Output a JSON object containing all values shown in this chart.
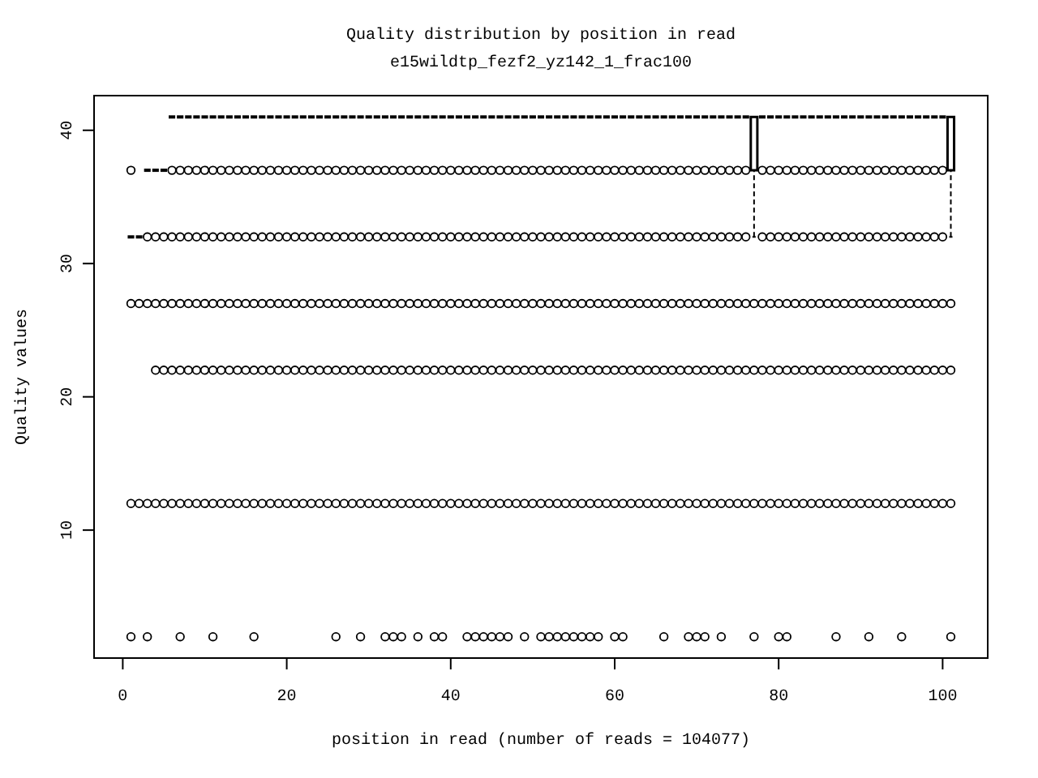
{
  "chart_data": {
    "type": "box",
    "title": "Quality distribution by position in read",
    "subtitle": "e15wildtp_fezf2_yz142_1_frac100",
    "xlabel": "position in read (number of reads = 104077)",
    "ylabel": "Quality values",
    "xlim": [
      -3.5,
      105.5
    ],
    "xticks": [
      0,
      20,
      40,
      60,
      80,
      100
    ],
    "ylim": [
      0.4,
      42.6
    ],
    "yticks": [
      10,
      20,
      30,
      40
    ],
    "series": [
      {
        "color": "#000000",
        "x": [
          1,
          2,
          3,
          4,
          5,
          6,
          7,
          8,
          9,
          10,
          11,
          12,
          13,
          14,
          15,
          16,
          17,
          18,
          19,
          20,
          21,
          22,
          23,
          24,
          25,
          26,
          27,
          28,
          29,
          30,
          31,
          32,
          33,
          34,
          35,
          36,
          37,
          38,
          39,
          40,
          41,
          42,
          43,
          44,
          45,
          46,
          47,
          48,
          49,
          50,
          51,
          52,
          53,
          54,
          55,
          56,
          57,
          58,
          59,
          60,
          61,
          62,
          63,
          64,
          65,
          66,
          67,
          68,
          69,
          70,
          71,
          72,
          73,
          74,
          75,
          76,
          77,
          78,
          79,
          80,
          81,
          82,
          83,
          84,
          85,
          86,
          87,
          88,
          89,
          90,
          91,
          92,
          93,
          94,
          95,
          96,
          97,
          98,
          99,
          100,
          101
        ],
        "boxes": [
          {
            "low": 32,
            "q1": 32,
            "median": 32,
            "q3": 32,
            "high": 32,
            "outliers": [
              37,
              27,
              12,
              2
            ]
          },
          {
            "low": 32,
            "q1": 32,
            "median": 32,
            "q3": 32,
            "high": 32,
            "outliers": [
              27,
              12
            ]
          },
          {
            "low": 37,
            "q1": 37,
            "median": 37,
            "q3": 37,
            "high": 37,
            "outliers": [
              32,
              27,
              12,
              2
            ]
          },
          {
            "low": 37,
            "q1": 37,
            "median": 37,
            "q3": 37,
            "high": 37,
            "outliers": [
              32,
              27,
              22,
              12
            ]
          },
          {
            "low": 37,
            "q1": 37,
            "median": 37,
            "q3": 37,
            "high": 37,
            "outliers": [
              32,
              27,
              22,
              12
            ]
          },
          {
            "low": 41,
            "q1": 41,
            "median": 41,
            "q3": 41,
            "high": 41,
            "outliers": [
              37,
              32,
              27,
              22,
              12
            ]
          },
          {
            "low": 41,
            "q1": 41,
            "median": 41,
            "q3": 41,
            "high": 41,
            "outliers": [
              37,
              32,
              27,
              22,
              12,
              2
            ]
          },
          {
            "low": 41,
            "q1": 41,
            "median": 41,
            "q3": 41,
            "high": 41,
            "outliers": [
              37,
              32,
              27,
              22,
              12
            ]
          },
          {
            "low": 41,
            "q1": 41,
            "median": 41,
            "q3": 41,
            "high": 41,
            "outliers": [
              37,
              32,
              27,
              22,
              12
            ]
          },
          {
            "low": 41,
            "q1": 41,
            "median": 41,
            "q3": 41,
            "high": 41,
            "outliers": [
              37,
              32,
              27,
              22,
              12
            ]
          },
          {
            "low": 41,
            "q1": 41,
            "median": 41,
            "q3": 41,
            "high": 41,
            "outliers": [
              37,
              32,
              27,
              22,
              12,
              2
            ]
          },
          {
            "low": 41,
            "q1": 41,
            "median": 41,
            "q3": 41,
            "high": 41,
            "outliers": [
              37,
              32,
              27,
              22,
              12
            ]
          },
          {
            "low": 41,
            "q1": 41,
            "median": 41,
            "q3": 41,
            "high": 41,
            "outliers": [
              37,
              32,
              27,
              22,
              12
            ]
          },
          {
            "low": 41,
            "q1": 41,
            "median": 41,
            "q3": 41,
            "high": 41,
            "outliers": [
              37,
              32,
              27,
              22,
              12
            ]
          },
          {
            "low": 41,
            "q1": 41,
            "median": 41,
            "q3": 41,
            "high": 41,
            "outliers": [
              37,
              32,
              27,
              22,
              12
            ]
          },
          {
            "low": 41,
            "q1": 41,
            "median": 41,
            "q3": 41,
            "high": 41,
            "outliers": [
              37,
              32,
              27,
              22,
              12,
              2
            ]
          },
          {
            "low": 41,
            "q1": 41,
            "median": 41,
            "q3": 41,
            "high": 41,
            "outliers": [
              37,
              32,
              27,
              22,
              12
            ]
          },
          {
            "low": 41,
            "q1": 41,
            "median": 41,
            "q3": 41,
            "high": 41,
            "outliers": [
              37,
              32,
              27,
              22,
              12
            ]
          },
          {
            "low": 41,
            "q1": 41,
            "median": 41,
            "q3": 41,
            "high": 41,
            "outliers": [
              37,
              32,
              27,
              22,
              12
            ]
          },
          {
            "low": 41,
            "q1": 41,
            "median": 41,
            "q3": 41,
            "high": 41,
            "outliers": [
              37,
              32,
              27,
              22,
              12
            ]
          },
          {
            "low": 41,
            "q1": 41,
            "median": 41,
            "q3": 41,
            "high": 41,
            "outliers": [
              37,
              32,
              27,
              22,
              12
            ]
          },
          {
            "low": 41,
            "q1": 41,
            "median": 41,
            "q3": 41,
            "high": 41,
            "outliers": [
              37,
              32,
              27,
              22,
              12
            ]
          },
          {
            "low": 41,
            "q1": 41,
            "median": 41,
            "q3": 41,
            "high": 41,
            "outliers": [
              37,
              32,
              27,
              22,
              12
            ]
          },
          {
            "low": 41,
            "q1": 41,
            "median": 41,
            "q3": 41,
            "high": 41,
            "outliers": [
              37,
              32,
              27,
              22,
              12
            ]
          },
          {
            "low": 41,
            "q1": 41,
            "median": 41,
            "q3": 41,
            "high": 41,
            "outliers": [
              37,
              32,
              27,
              22,
              12
            ]
          },
          {
            "low": 41,
            "q1": 41,
            "median": 41,
            "q3": 41,
            "high": 41,
            "outliers": [
              37,
              32,
              27,
              22,
              12,
              2
            ]
          },
          {
            "low": 41,
            "q1": 41,
            "median": 41,
            "q3": 41,
            "high": 41,
            "outliers": [
              37,
              32,
              27,
              22,
              12
            ]
          },
          {
            "low": 41,
            "q1": 41,
            "median": 41,
            "q3": 41,
            "high": 41,
            "outliers": [
              37,
              32,
              27,
              22,
              12
            ]
          },
          {
            "low": 41,
            "q1": 41,
            "median": 41,
            "q3": 41,
            "high": 41,
            "outliers": [
              37,
              32,
              27,
              22,
              12,
              2
            ]
          },
          {
            "low": 41,
            "q1": 41,
            "median": 41,
            "q3": 41,
            "high": 41,
            "outliers": [
              37,
              32,
              27,
              22,
              12
            ]
          },
          {
            "low": 41,
            "q1": 41,
            "median": 41,
            "q3": 41,
            "high": 41,
            "outliers": [
              37,
              32,
              27,
              22,
              12
            ]
          },
          {
            "low": 41,
            "q1": 41,
            "median": 41,
            "q3": 41,
            "high": 41,
            "outliers": [
              37,
              32,
              27,
              22,
              12,
              2
            ]
          },
          {
            "low": 41,
            "q1": 41,
            "median": 41,
            "q3": 41,
            "high": 41,
            "outliers": [
              37,
              32,
              27,
              22,
              12,
              2
            ]
          },
          {
            "low": 41,
            "q1": 41,
            "median": 41,
            "q3": 41,
            "high": 41,
            "outliers": [
              37,
              32,
              27,
              22,
              12,
              2
            ]
          },
          {
            "low": 41,
            "q1": 41,
            "median": 41,
            "q3": 41,
            "high": 41,
            "outliers": [
              37,
              32,
              27,
              22,
              12
            ]
          },
          {
            "low": 41,
            "q1": 41,
            "median": 41,
            "q3": 41,
            "high": 41,
            "outliers": [
              37,
              32,
              27,
              22,
              12,
              2
            ]
          },
          {
            "low": 41,
            "q1": 41,
            "median": 41,
            "q3": 41,
            "high": 41,
            "outliers": [
              37,
              32,
              27,
              22,
              12
            ]
          },
          {
            "low": 41,
            "q1": 41,
            "median": 41,
            "q3": 41,
            "high": 41,
            "outliers": [
              37,
              32,
              27,
              22,
              12,
              2
            ]
          },
          {
            "low": 41,
            "q1": 41,
            "median": 41,
            "q3": 41,
            "high": 41,
            "outliers": [
              37,
              32,
              27,
              22,
              12,
              2
            ]
          },
          {
            "low": 41,
            "q1": 41,
            "median": 41,
            "q3": 41,
            "high": 41,
            "outliers": [
              37,
              32,
              27,
              22,
              12
            ]
          },
          {
            "low": 41,
            "q1": 41,
            "median": 41,
            "q3": 41,
            "high": 41,
            "outliers": [
              37,
              32,
              27,
              22,
              12
            ]
          },
          {
            "low": 41,
            "q1": 41,
            "median": 41,
            "q3": 41,
            "high": 41,
            "outliers": [
              37,
              32,
              27,
              22,
              12,
              2
            ]
          },
          {
            "low": 41,
            "q1": 41,
            "median": 41,
            "q3": 41,
            "high": 41,
            "outliers": [
              37,
              32,
              27,
              22,
              12,
              2
            ]
          },
          {
            "low": 41,
            "q1": 41,
            "median": 41,
            "q3": 41,
            "high": 41,
            "outliers": [
              37,
              32,
              27,
              22,
              12,
              2
            ]
          },
          {
            "low": 41,
            "q1": 41,
            "median": 41,
            "q3": 41,
            "high": 41,
            "outliers": [
              37,
              32,
              27,
              22,
              12,
              2
            ]
          },
          {
            "low": 41,
            "q1": 41,
            "median": 41,
            "q3": 41,
            "high": 41,
            "outliers": [
              37,
              32,
              27,
              22,
              12,
              2
            ]
          },
          {
            "low": 41,
            "q1": 41,
            "median": 41,
            "q3": 41,
            "high": 41,
            "outliers": [
              37,
              32,
              27,
              22,
              12,
              2
            ]
          },
          {
            "low": 41,
            "q1": 41,
            "median": 41,
            "q3": 41,
            "high": 41,
            "outliers": [
              37,
              32,
              27,
              22,
              12
            ]
          },
          {
            "low": 41,
            "q1": 41,
            "median": 41,
            "q3": 41,
            "high": 41,
            "outliers": [
              37,
              32,
              27,
              22,
              12,
              2
            ]
          },
          {
            "low": 41,
            "q1": 41,
            "median": 41,
            "q3": 41,
            "high": 41,
            "outliers": [
              37,
              32,
              27,
              22,
              12
            ]
          },
          {
            "low": 41,
            "q1": 41,
            "median": 41,
            "q3": 41,
            "high": 41,
            "outliers": [
              37,
              32,
              27,
              22,
              12,
              2
            ]
          },
          {
            "low": 41,
            "q1": 41,
            "median": 41,
            "q3": 41,
            "high": 41,
            "outliers": [
              37,
              32,
              27,
              22,
              12,
              2
            ]
          },
          {
            "low": 41,
            "q1": 41,
            "median": 41,
            "q3": 41,
            "high": 41,
            "outliers": [
              37,
              32,
              27,
              22,
              12,
              2
            ]
          },
          {
            "low": 41,
            "q1": 41,
            "median": 41,
            "q3": 41,
            "high": 41,
            "outliers": [
              37,
              32,
              27,
              22,
              12,
              2
            ]
          },
          {
            "low": 41,
            "q1": 41,
            "median": 41,
            "q3": 41,
            "high": 41,
            "outliers": [
              37,
              32,
              27,
              22,
              12,
              2
            ]
          },
          {
            "low": 41,
            "q1": 41,
            "median": 41,
            "q3": 41,
            "high": 41,
            "outliers": [
              37,
              32,
              27,
              22,
              12,
              2
            ]
          },
          {
            "low": 41,
            "q1": 41,
            "median": 41,
            "q3": 41,
            "high": 41,
            "outliers": [
              37,
              32,
              27,
              22,
              12,
              2
            ]
          },
          {
            "low": 41,
            "q1": 41,
            "median": 41,
            "q3": 41,
            "high": 41,
            "outliers": [
              37,
              32,
              27,
              22,
              12,
              2
            ]
          },
          {
            "low": 41,
            "q1": 41,
            "median": 41,
            "q3": 41,
            "high": 41,
            "outliers": [
              37,
              32,
              27,
              22,
              12
            ]
          },
          {
            "low": 41,
            "q1": 41,
            "median": 41,
            "q3": 41,
            "high": 41,
            "outliers": [
              37,
              32,
              27,
              22,
              12,
              2
            ]
          },
          {
            "low": 41,
            "q1": 41,
            "median": 41,
            "q3": 41,
            "high": 41,
            "outliers": [
              37,
              32,
              27,
              22,
              12,
              2
            ]
          },
          {
            "low": 41,
            "q1": 41,
            "median": 41,
            "q3": 41,
            "high": 41,
            "outliers": [
              37,
              32,
              27,
              22,
              12
            ]
          },
          {
            "low": 41,
            "q1": 41,
            "median": 41,
            "q3": 41,
            "high": 41,
            "outliers": [
              37,
              32,
              27,
              22,
              12
            ]
          },
          {
            "low": 41,
            "q1": 41,
            "median": 41,
            "q3": 41,
            "high": 41,
            "outliers": [
              37,
              32,
              27,
              22,
              12
            ]
          },
          {
            "low": 41,
            "q1": 41,
            "median": 41,
            "q3": 41,
            "high": 41,
            "outliers": [
              37,
              32,
              27,
              22,
              12
            ]
          },
          {
            "low": 41,
            "q1": 41,
            "median": 41,
            "q3": 41,
            "high": 41,
            "outliers": [
              37,
              32,
              27,
              22,
              12,
              2
            ]
          },
          {
            "low": 41,
            "q1": 41,
            "median": 41,
            "q3": 41,
            "high": 41,
            "outliers": [
              37,
              32,
              27,
              22,
              12
            ]
          },
          {
            "low": 41,
            "q1": 41,
            "median": 41,
            "q3": 41,
            "high": 41,
            "outliers": [
              37,
              32,
              27,
              22,
              12
            ]
          },
          {
            "low": 41,
            "q1": 41,
            "median": 41,
            "q3": 41,
            "high": 41,
            "outliers": [
              37,
              32,
              27,
              22,
              12,
              2
            ]
          },
          {
            "low": 41,
            "q1": 41,
            "median": 41,
            "q3": 41,
            "high": 41,
            "outliers": [
              37,
              32,
              27,
              22,
              12,
              2
            ]
          },
          {
            "low": 41,
            "q1": 41,
            "median": 41,
            "q3": 41,
            "high": 41,
            "outliers": [
              37,
              32,
              27,
              22,
              12,
              2
            ]
          },
          {
            "low": 41,
            "q1": 41,
            "median": 41,
            "q3": 41,
            "high": 41,
            "outliers": [
              37,
              32,
              27,
              22,
              12
            ]
          },
          {
            "low": 41,
            "q1": 41,
            "median": 41,
            "q3": 41,
            "high": 41,
            "outliers": [
              37,
              32,
              27,
              22,
              12,
              2
            ]
          },
          {
            "low": 41,
            "q1": 41,
            "median": 41,
            "q3": 41,
            "high": 41,
            "outliers": [
              37,
              32,
              27,
              22,
              12
            ]
          },
          {
            "low": 41,
            "q1": 41,
            "median": 41,
            "q3": 41,
            "high": 41,
            "outliers": [
              37,
              32,
              27,
              22,
              12
            ]
          },
          {
            "low": 41,
            "q1": 41,
            "median": 41,
            "q3": 41,
            "high": 41,
            "outliers": [
              37,
              32,
              27,
              22,
              12
            ]
          },
          {
            "low": 32,
            "q1": 37,
            "median": 41,
            "q3": 41,
            "high": 41,
            "outliers": [
              27,
              22,
              12,
              2
            ]
          },
          {
            "low": 41,
            "q1": 41,
            "median": 41,
            "q3": 41,
            "high": 41,
            "outliers": [
              37,
              32,
              27,
              22,
              12
            ]
          },
          {
            "low": 41,
            "q1": 41,
            "median": 41,
            "q3": 41,
            "high": 41,
            "outliers": [
              37,
              32,
              27,
              22,
              12
            ]
          },
          {
            "low": 41,
            "q1": 41,
            "median": 41,
            "q3": 41,
            "high": 41,
            "outliers": [
              37,
              32,
              27,
              22,
              12,
              2
            ]
          },
          {
            "low": 41,
            "q1": 41,
            "median": 41,
            "q3": 41,
            "high": 41,
            "outliers": [
              37,
              32,
              27,
              22,
              12,
              2
            ]
          },
          {
            "low": 41,
            "q1": 41,
            "median": 41,
            "q3": 41,
            "high": 41,
            "outliers": [
              37,
              32,
              27,
              22,
              12
            ]
          },
          {
            "low": 41,
            "q1": 41,
            "median": 41,
            "q3": 41,
            "high": 41,
            "outliers": [
              37,
              32,
              27,
              22,
              12
            ]
          },
          {
            "low": 41,
            "q1": 41,
            "median": 41,
            "q3": 41,
            "high": 41,
            "outliers": [
              37,
              32,
              27,
              22,
              12
            ]
          },
          {
            "low": 41,
            "q1": 41,
            "median": 41,
            "q3": 41,
            "high": 41,
            "outliers": [
              37,
              32,
              27,
              22,
              12
            ]
          },
          {
            "low": 41,
            "q1": 41,
            "median": 41,
            "q3": 41,
            "high": 41,
            "outliers": [
              37,
              32,
              27,
              22,
              12
            ]
          },
          {
            "low": 41,
            "q1": 41,
            "median": 41,
            "q3": 41,
            "high": 41,
            "outliers": [
              37,
              32,
              27,
              22,
              12,
              2
            ]
          },
          {
            "low": 41,
            "q1": 41,
            "median": 41,
            "q3": 41,
            "high": 41,
            "outliers": [
              37,
              32,
              27,
              22,
              12
            ]
          },
          {
            "low": 41,
            "q1": 41,
            "median": 41,
            "q3": 41,
            "high": 41,
            "outliers": [
              37,
              32,
              27,
              22,
              12
            ]
          },
          {
            "low": 41,
            "q1": 41,
            "median": 41,
            "q3": 41,
            "high": 41,
            "outliers": [
              37,
              32,
              27,
              22,
              12
            ]
          },
          {
            "low": 41,
            "q1": 41,
            "median": 41,
            "q3": 41,
            "high": 41,
            "outliers": [
              37,
              32,
              27,
              22,
              12,
              2
            ]
          },
          {
            "low": 41,
            "q1": 41,
            "median": 41,
            "q3": 41,
            "high": 41,
            "outliers": [
              37,
              32,
              27,
              22,
              12
            ]
          },
          {
            "low": 41,
            "q1": 41,
            "median": 41,
            "q3": 41,
            "high": 41,
            "outliers": [
              37,
              32,
              27,
              22,
              12
            ]
          },
          {
            "low": 41,
            "q1": 41,
            "median": 41,
            "q3": 41,
            "high": 41,
            "outliers": [
              37,
              32,
              27,
              22,
              12
            ]
          },
          {
            "low": 41,
            "q1": 41,
            "median": 41,
            "q3": 41,
            "high": 41,
            "outliers": [
              37,
              32,
              27,
              22,
              12,
              2
            ]
          },
          {
            "low": 41,
            "q1": 41,
            "median": 41,
            "q3": 41,
            "high": 41,
            "outliers": [
              37,
              32,
              27,
              22,
              12
            ]
          },
          {
            "low": 41,
            "q1": 41,
            "median": 41,
            "q3": 41,
            "high": 41,
            "outliers": [
              37,
              32,
              27,
              22,
              12
            ]
          },
          {
            "low": 41,
            "q1": 41,
            "median": 41,
            "q3": 41,
            "high": 41,
            "outliers": [
              37,
              32,
              27,
              22,
              12
            ]
          },
          {
            "low": 41,
            "q1": 41,
            "median": 41,
            "q3": 41,
            "high": 41,
            "outliers": [
              37,
              32,
              27,
              22,
              12
            ]
          },
          {
            "low": 41,
            "q1": 41,
            "median": 41,
            "q3": 41,
            "high": 41,
            "outliers": [
              37,
              32,
              27,
              22,
              12
            ]
          },
          {
            "low": 32,
            "q1": 37,
            "median": 41,
            "q3": 41,
            "high": 41,
            "outliers": [
              27,
              22,
              12,
              2
            ]
          }
        ]
      }
    ]
  }
}
